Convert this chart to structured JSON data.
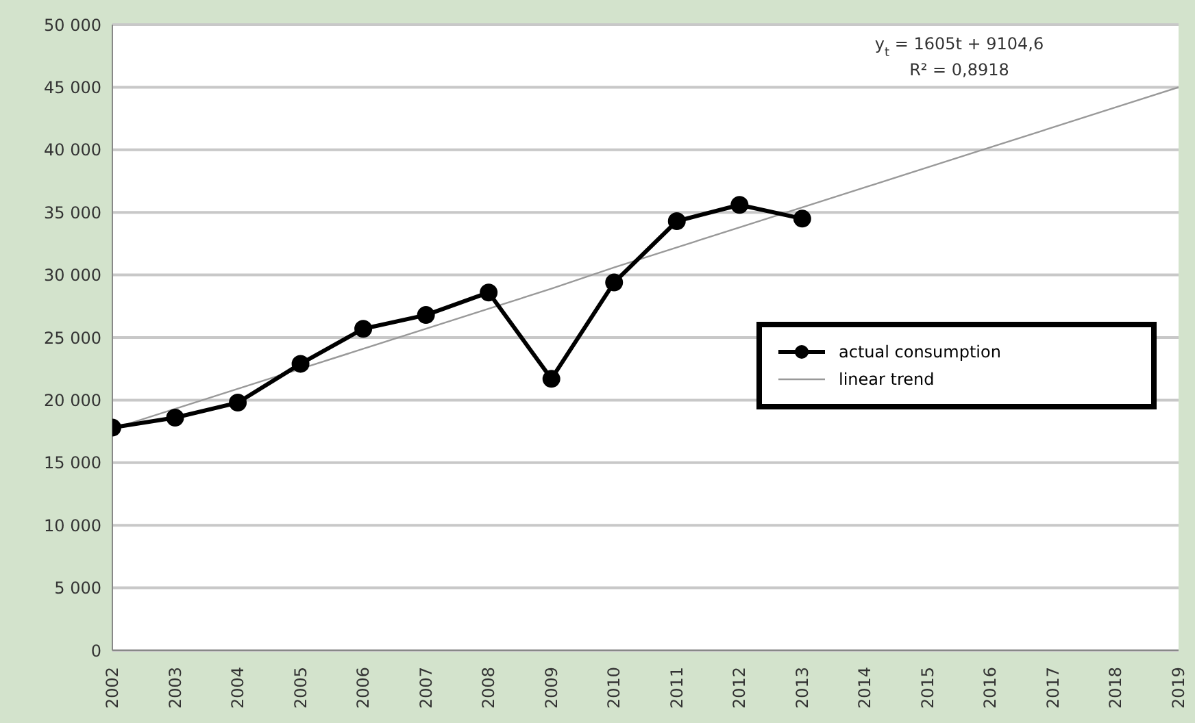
{
  "chart_data": {
    "type": "line",
    "categories": [
      "2002",
      "2003",
      "2004",
      "2005",
      "2006",
      "2007",
      "2008",
      "2009",
      "2010",
      "2011",
      "2012",
      "2013",
      "2014",
      "2015",
      "2016",
      "2017",
      "2018",
      "2019"
    ],
    "series": [
      {
        "name": "actual consumption",
        "color": "#000000",
        "marker": "circle",
        "values": [
          17800,
          18600,
          19800,
          22900,
          25700,
          26800,
          28600,
          21700,
          29400,
          34300,
          35600,
          34500,
          null,
          null,
          null,
          null,
          null,
          null
        ]
      },
      {
        "name": "linear trend",
        "color": "#999999",
        "marker": "none",
        "values": [
          17700,
          19300,
          20900,
          22500,
          24100,
          25700,
          27300,
          28900,
          30600,
          32200,
          33800,
          35400,
          37000,
          38600,
          40200,
          41800,
          43400,
          45000
        ]
      }
    ],
    "ylim": [
      0,
      50000
    ],
    "yticks": [
      {
        "value": 0,
        "label": "0"
      },
      {
        "value": 5000,
        "label": "5 000"
      },
      {
        "value": 10000,
        "label": "10 000"
      },
      {
        "value": 15000,
        "label": "15 000"
      },
      {
        "value": 20000,
        "label": "20 000"
      },
      {
        "value": 25000,
        "label": "25 000"
      },
      {
        "value": 30000,
        "label": "30 000"
      },
      {
        "value": 35000,
        "label": "35 000"
      },
      {
        "value": 40000,
        "label": "40 000"
      },
      {
        "value": 45000,
        "label": "45 000"
      },
      {
        "value": 50000,
        "label": "50 000"
      }
    ],
    "grid": "y",
    "legend": "right",
    "annotations": [
      "y$_{t}$ = 1605t + 9104,6",
      "R² = 0,8918"
    ]
  }
}
